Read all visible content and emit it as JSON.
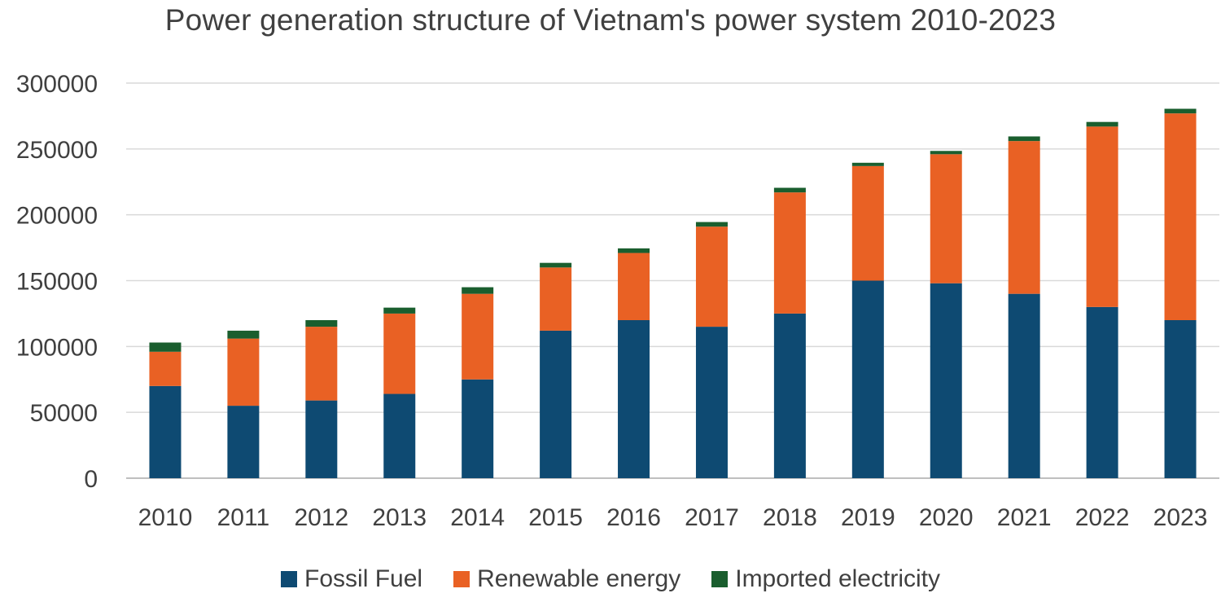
{
  "chart_data": {
    "type": "bar",
    "stacked": true,
    "title": "Power generation structure of Vietnam's power system 2010-2023",
    "xlabel": "",
    "ylabel": "",
    "ylim": [
      0,
      300000
    ],
    "yticks": [
      0,
      50000,
      100000,
      150000,
      200000,
      250000,
      300000
    ],
    "ytick_labels": [
      "0",
      "50000",
      "100000",
      "150000",
      "200000",
      "250000",
      "300000"
    ],
    "grid": true,
    "legend_position": "bottom",
    "categories": [
      "2010",
      "2011",
      "2012",
      "2013",
      "2014",
      "2015",
      "2016",
      "2017",
      "2018",
      "2019",
      "2020",
      "2021",
      "2022",
      "2023"
    ],
    "series": [
      {
        "name": "Fossil Fuel",
        "color": "#0e4a72",
        "values": [
          70000,
          55000,
          59000,
          64000,
          75000,
          112000,
          120000,
          115000,
          125000,
          150000,
          148000,
          140000,
          130000,
          120000
        ]
      },
      {
        "name": "Renewable energy",
        "color": "#e96124",
        "values": [
          26000,
          51000,
          56000,
          61000,
          65000,
          48000,
          51000,
          76000,
          92000,
          87000,
          98000,
          116000,
          137000,
          157000
        ]
      },
      {
        "name": "Imported electricity",
        "color": "#1a5e2e",
        "values": [
          7000,
          6000,
          5000,
          4500,
          5000,
          3500,
          3500,
          3500,
          3500,
          2500,
          2500,
          3500,
          3500,
          3500
        ]
      }
    ]
  }
}
